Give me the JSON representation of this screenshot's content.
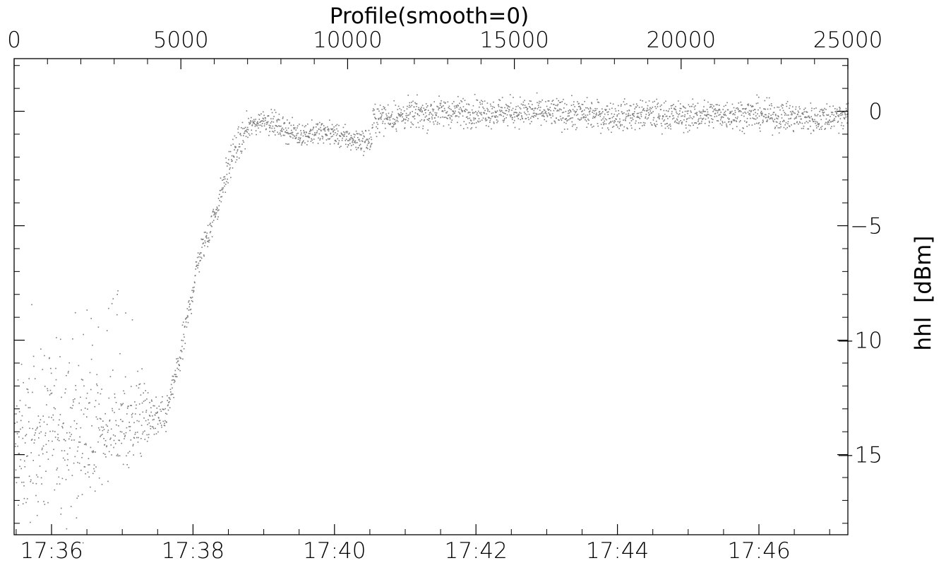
{
  "chart_data": {
    "type": "scatter",
    "title": "Profile(smooth=0)",
    "ylabel": "hhl  [dBm]",
    "xlabel": "",
    "top_axis": {
      "range": [
        0,
        25000
      ],
      "tick_labels": [
        "0",
        "5000",
        "10000",
        "15000",
        "20000",
        "25000"
      ]
    },
    "bottom_axis": {
      "tick_labels": [
        "17:36",
        "17:38",
        "17:40",
        "17:42",
        "17:44",
        "17:46"
      ]
    },
    "y_axis": {
      "side": "right",
      "ylim": [
        -18.5,
        2.3
      ],
      "ticks": [
        0,
        -5,
        -10,
        -15
      ],
      "tick_labels": [
        "0",
        "−5",
        "−10",
        "−15"
      ]
    },
    "grid": false,
    "marker_color": "#7a7a7a",
    "series": [
      {
        "x_approx": [
          0,
          1000,
          2000,
          3000,
          4000,
          4500,
          5000,
          5500,
          6000,
          6500,
          7000,
          7500,
          8000,
          8500,
          9000,
          9500,
          10000,
          10700,
          10750,
          12000,
          13000,
          15000,
          17000,
          18000,
          19000,
          20000,
          21000,
          22000,
          23000,
          24000,
          25000
        ],
        "y_approx": [
          -14.8,
          -14.0,
          -14.2,
          -13.8,
          -13.4,
          -13.5,
          -10.5,
          -6.5,
          -4.5,
          -2.0,
          -0.7,
          -0.3,
          -0.7,
          -1.0,
          -0.9,
          -0.9,
          -1.2,
          -1.3,
          -0.3,
          -0.1,
          0.0,
          0.0,
          -0.1,
          -0.2,
          -0.1,
          -0.2,
          -0.1,
          -0.1,
          -0.2,
          -0.3,
          -0.1
        ]
      }
    ]
  }
}
